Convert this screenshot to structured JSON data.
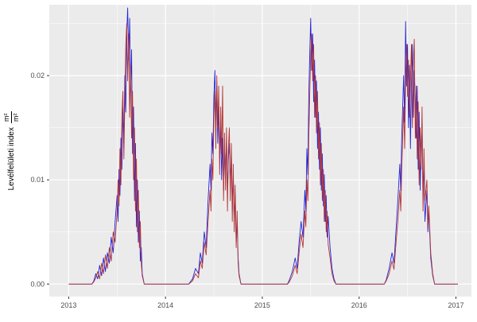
{
  "figure": {
    "background": "#FFFFFF",
    "panel_background": "#EBEBEB",
    "grid_major_color": "#FFFFFF",
    "grid_minor_color": "#F7F7F7",
    "tick_label_color": "#4D4D4D",
    "tick_mark_color": "#333333",
    "y_axis_title": {
      "text": "Levélfelületi index",
      "unit_numerator": "m²",
      "unit_denominator": "m²"
    }
  },
  "chart_data": {
    "type": "line",
    "title": "",
    "xlabel": "",
    "ylabel": "Levélfelületi index m²/m²",
    "legend": "none",
    "grid": true,
    "x_tick_labels": [
      "2013",
      "2014",
      "2015",
      "2016",
      "2017"
    ],
    "y_tick_labels": [
      "0.00",
      "0.01",
      "0.02"
    ],
    "x_minor_ticks": [
      2013.5,
      2014.5,
      2015.5,
      2016.5
    ],
    "y_minor_ticks": [
      0.005,
      0.015,
      0.025
    ],
    "xlim": [
      2012.8,
      2017.16
    ],
    "ylim": [
      -0.0012,
      0.0268
    ],
    "x": [
      2013.0,
      2013.24,
      2013.26,
      2013.28,
      2013.3,
      2013.32,
      2013.34,
      2013.36,
      2013.38,
      2013.4,
      2013.42,
      2013.44,
      2013.46,
      2013.48,
      2013.5,
      2013.51,
      2013.52,
      2013.53,
      2013.54,
      2013.55,
      2013.56,
      2013.57,
      2013.58,
      2013.59,
      2013.6,
      2013.61,
      2013.62,
      2013.63,
      2013.64,
      2013.65,
      2013.66,
      2013.67,
      2013.68,
      2013.69,
      2013.7,
      2013.71,
      2013.72,
      2013.73,
      2013.74,
      2013.75,
      2013.76,
      2013.78,
      2014.24,
      2014.28,
      2014.31,
      2014.34,
      2014.36,
      2014.38,
      2014.4,
      2014.42,
      2014.44,
      2014.46,
      2014.47,
      2014.48,
      2014.49,
      2014.5,
      2014.51,
      2014.52,
      2014.53,
      2014.54,
      2014.55,
      2014.56,
      2014.57,
      2014.58,
      2014.59,
      2014.6,
      2014.61,
      2014.62,
      2014.63,
      2014.64,
      2014.65,
      2014.66,
      2014.67,
      2014.68,
      2014.69,
      2014.7,
      2014.71,
      2014.72,
      2014.73,
      2014.74,
      2014.75,
      2014.76,
      2014.78,
      2015.26,
      2015.28,
      2015.31,
      2015.34,
      2015.36,
      2015.38,
      2015.4,
      2015.42,
      2015.44,
      2015.45,
      2015.46,
      2015.47,
      2015.48,
      2015.49,
      2015.5,
      2015.51,
      2015.52,
      2015.53,
      2015.54,
      2015.55,
      2015.56,
      2015.57,
      2015.58,
      2015.59,
      2015.6,
      2015.61,
      2015.62,
      2015.63,
      2015.64,
      2015.65,
      2015.66,
      2015.67,
      2015.68,
      2015.7,
      2015.72,
      2015.74,
      2015.76,
      2016.26,
      2016.28,
      2016.31,
      2016.34,
      2016.36,
      2016.38,
      2016.4,
      2016.42,
      2016.43,
      2016.44,
      2016.45,
      2016.46,
      2016.47,
      2016.48,
      2016.49,
      2016.5,
      2016.51,
      2016.52,
      2016.53,
      2016.54,
      2016.55,
      2016.56,
      2016.57,
      2016.58,
      2016.59,
      2016.6,
      2016.61,
      2016.62,
      2016.63,
      2016.64,
      2016.65,
      2016.66,
      2016.67,
      2016.68,
      2016.7,
      2016.71,
      2016.72,
      2016.74,
      2016.76,
      2016.78,
      2017.02
    ],
    "series": [
      {
        "name": "blue",
        "color": "#2323dc",
        "values": [
          0,
          0,
          0.0003,
          0.001,
          0.0005,
          0.0018,
          0.0008,
          0.0025,
          0.0012,
          0.003,
          0.002,
          0.0045,
          0.003,
          0.006,
          0.0085,
          0.006,
          0.011,
          0.0085,
          0.014,
          0.011,
          0.017,
          0.0135,
          0.02,
          0.0165,
          0.024,
          0.0265,
          0.0215,
          0.0255,
          0.0185,
          0.0225,
          0.0125,
          0.017,
          0.008,
          0.0135,
          0.0055,
          0.01,
          0.004,
          0.007,
          0.0022,
          0.0035,
          0.001,
          0,
          0,
          0.0005,
          0.0015,
          0.001,
          0.003,
          0.002,
          0.005,
          0.0035,
          0.008,
          0.0115,
          0.009,
          0.0145,
          0.0125,
          0.018,
          0.0205,
          0.015,
          0.019,
          0.0135,
          0.017,
          0.012,
          0.0155,
          0.01,
          0.014,
          0.009,
          0.013,
          0.0105,
          0.014,
          0.0085,
          0.012,
          0.0135,
          0.0095,
          0.0125,
          0.0075,
          0.0105,
          0.006,
          0.0085,
          0.004,
          0.006,
          0.0025,
          0.001,
          0,
          0,
          0.0004,
          0.0012,
          0.0025,
          0.0015,
          0.004,
          0.006,
          0.0045,
          0.009,
          0.007,
          0.013,
          0.0105,
          0.018,
          0.022,
          0.0255,
          0.0205,
          0.024,
          0.0175,
          0.0215,
          0.016,
          0.0195,
          0.013,
          0.0165,
          0.011,
          0.015,
          0.009,
          0.0125,
          0.0075,
          0.0105,
          0.006,
          0.0085,
          0.0045,
          0.0065,
          0.0035,
          0.0015,
          0.0005,
          0,
          0,
          0.0004,
          0.0015,
          0.003,
          0.002,
          0.005,
          0.008,
          0.0115,
          0.009,
          0.014,
          0.017,
          0.02,
          0.0155,
          0.0252,
          0.019,
          0.023,
          0.015,
          0.021,
          0.013,
          0.0195,
          0.023,
          0.016,
          0.0205,
          0.0175,
          0.014,
          0.019,
          0.011,
          0.0165,
          0.009,
          0.013,
          0.0155,
          0.008,
          0.012,
          0.006,
          0.009,
          0.005,
          0.007,
          0.0025,
          0.0008,
          0,
          0
        ]
      },
      {
        "name": "red",
        "color": "#b23434",
        "values": [
          0,
          0,
          0.0002,
          0.0006,
          0.0012,
          0.0005,
          0.002,
          0.001,
          0.0028,
          0.0015,
          0.0035,
          0.0022,
          0.005,
          0.004,
          0.007,
          0.01,
          0.0075,
          0.013,
          0.0095,
          0.016,
          0.0185,
          0.012,
          0.0175,
          0.023,
          0.025,
          0.0195,
          0.024,
          0.016,
          0.021,
          0.014,
          0.0185,
          0.01,
          0.015,
          0.007,
          0.012,
          0.005,
          0.009,
          0.0035,
          0.006,
          0.002,
          0.0008,
          0,
          0,
          0.0003,
          0.001,
          0.0006,
          0.0022,
          0.0015,
          0.004,
          0.0028,
          0.006,
          0.009,
          0.007,
          0.012,
          0.01,
          0.016,
          0.0185,
          0.013,
          0.02,
          0.015,
          0.019,
          0.0105,
          0.017,
          0.0125,
          0.019,
          0.008,
          0.0145,
          0.009,
          0.015,
          0.007,
          0.013,
          0.015,
          0.008,
          0.0135,
          0.006,
          0.0115,
          0.005,
          0.0095,
          0.0035,
          0.007,
          0.002,
          0.0008,
          0,
          0,
          0.0002,
          0.0008,
          0.0018,
          0.001,
          0.003,
          0.0048,
          0.0035,
          0.007,
          0.0055,
          0.01,
          0.008,
          0.014,
          0.018,
          0.022,
          0.024,
          0.0195,
          0.023,
          0.016,
          0.02,
          0.0145,
          0.0185,
          0.012,
          0.0155,
          0.0095,
          0.0135,
          0.008,
          0.011,
          0.006,
          0.009,
          0.005,
          0.007,
          0.0038,
          0.0025,
          0.001,
          0.0003,
          0,
          0,
          0.0003,
          0.001,
          0.0022,
          0.0014,
          0.0038,
          0.006,
          0.009,
          0.007,
          0.011,
          0.014,
          0.017,
          0.013,
          0.02,
          0.023,
          0.018,
          0.0215,
          0.016,
          0.0195,
          0.023,
          0.015,
          0.021,
          0.0235,
          0.014,
          0.019,
          0.012,
          0.0175,
          0.0095,
          0.015,
          0.011,
          0.017,
          0.007,
          0.013,
          0.008,
          0.01,
          0.0055,
          0.0075,
          0.003,
          0.001,
          0,
          0
        ]
      }
    ]
  }
}
